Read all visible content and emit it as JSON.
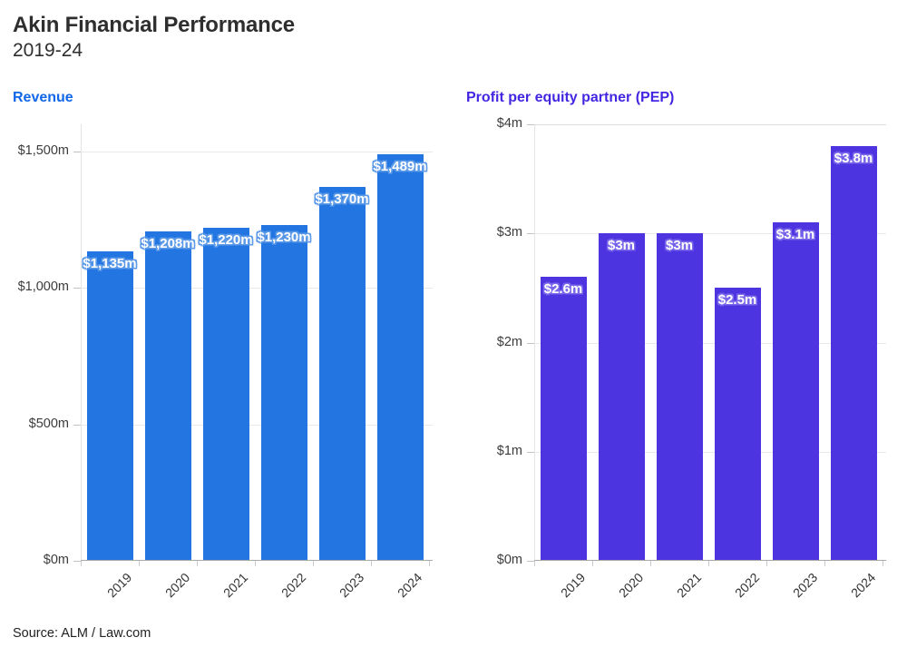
{
  "header": {
    "title": "Akin Financial Performance",
    "subtitle": "2019-24"
  },
  "source": "Source: ALM / Law.com",
  "colors": {
    "title_text": "#2e2e2e",
    "revenue_accent": "#1167e8",
    "pep_accent": "#4326e2",
    "revenue_bar": "#2376e1",
    "pep_bar": "#4c35e0",
    "gridline": "#e9e9e9",
    "baseline": "#a8a8a8",
    "background": "#ffffff"
  },
  "chart_data": [
    {
      "type": "bar",
      "title": "Revenue",
      "title_color": "#1167e8",
      "bar_color": "#2376e1",
      "label_halo": "#5d9ae8",
      "categories": [
        "2019",
        "2020",
        "2021",
        "2022",
        "2023",
        "2024"
      ],
      "values": [
        1135,
        1208,
        1220,
        1230,
        1370,
        1489
      ],
      "bar_labels": [
        "$1,135m",
        "$1,208m",
        "$1,220m",
        "$1,230m",
        "$1,370m",
        "$1,489m"
      ],
      "ylim": [
        0,
        1600
      ],
      "yticks": [
        {
          "value": 0,
          "label": "$0m"
        },
        {
          "value": 500,
          "label": "$500m"
        },
        {
          "value": 1000,
          "label": "$1,000m"
        },
        {
          "value": 1500,
          "label": "$1,500m"
        }
      ],
      "grid": "horizontal",
      "legend": "none",
      "xlabel": "",
      "ylabel": ""
    },
    {
      "type": "bar",
      "title": "Profit per equity partner (PEP)",
      "title_color": "#4326e2",
      "bar_color": "#4c35e0",
      "label_halo": "#7a68ea",
      "categories": [
        "2019",
        "2020",
        "2021",
        "2022",
        "2023",
        "2024"
      ],
      "values": [
        2.6,
        3,
        3,
        2.5,
        3.1,
        3.8
      ],
      "bar_labels": [
        "$2.6m",
        "$3m",
        "$3m",
        "$2.5m",
        "$3.1m",
        "$3.8m"
      ],
      "ylim": [
        0,
        4
      ],
      "yticks": [
        {
          "value": 0,
          "label": "$0m"
        },
        {
          "value": 1,
          "label": "$1m"
        },
        {
          "value": 2,
          "label": "$2m"
        },
        {
          "value": 3,
          "label": "$3m"
        },
        {
          "value": 4,
          "label": "$4m"
        }
      ],
      "grid": "horizontal",
      "legend": "none",
      "xlabel": "",
      "ylabel": ""
    }
  ]
}
